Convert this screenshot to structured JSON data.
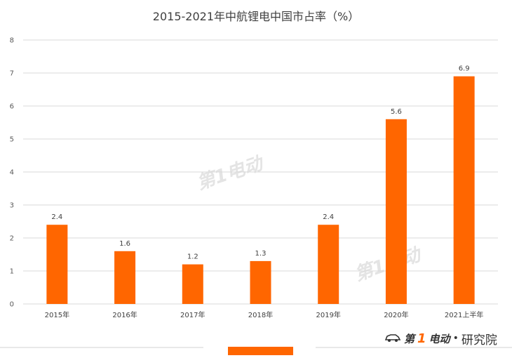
{
  "chart_data": {
    "type": "bar",
    "title": "2015-2021年中航锂电中国市占率（%）",
    "categories": [
      "2015年",
      "2016年",
      "2017年",
      "2018年",
      "2019年",
      "2020年",
      "2021上半年"
    ],
    "series": [
      {
        "values": [
          2.4,
          1.6,
          1.2,
          1.3,
          2.4,
          5.6,
          6.9
        ]
      }
    ],
    "ylim": [
      0,
      8
    ],
    "yticks": [
      0,
      1,
      2,
      3,
      4,
      5,
      6,
      7,
      8
    ],
    "grid": true,
    "data_labels": true,
    "bar_color": "#ff6600",
    "grid_color": "#d9d9d9"
  },
  "watermark": "第1电动",
  "brand": {
    "logo_text": "第",
    "logo_num": "1",
    "logo_text2": "电动",
    "dot": "•",
    "name": "研究院"
  }
}
